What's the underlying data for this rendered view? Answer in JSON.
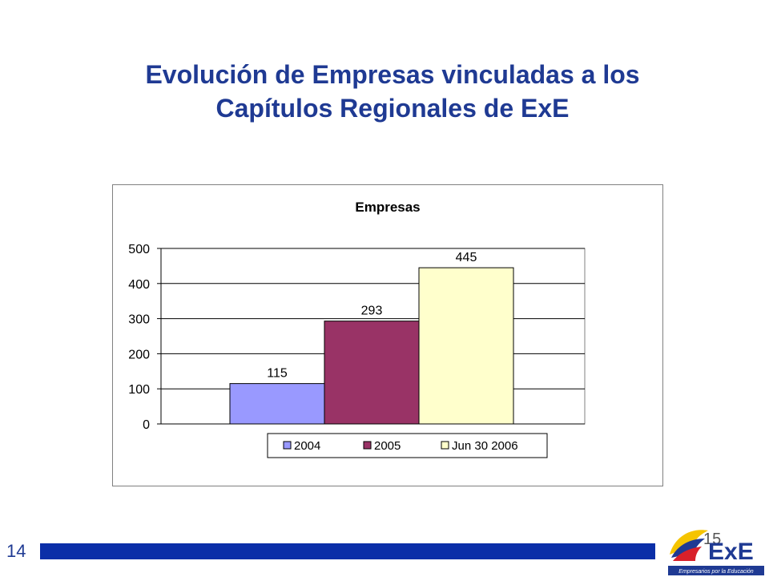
{
  "slide": {
    "title_line1": "Evolución de Empresas vinculadas a los",
    "title_line2": "Capítulos Regionales de ExE",
    "page_number": "14",
    "page_number_small": "15",
    "logo_text": "ExE",
    "logo_tagline": "Empresarios por la Educación"
  },
  "colors": {
    "title": "#1f3a93",
    "footer_bar": "#0b2fa8",
    "bar_2004": "#9999ff",
    "bar_2005": "#993366",
    "bar_jun2006": "#ffffcc"
  },
  "chart_data": {
    "type": "bar",
    "title": "Empresas",
    "categories": [
      ""
    ],
    "series": [
      {
        "name": "2004",
        "values": [
          115
        ],
        "color": "#9999ff"
      },
      {
        "name": "2005",
        "values": [
          293
        ],
        "color": "#993366"
      },
      {
        "name": "Jun 30 2006",
        "values": [
          445
        ],
        "color": "#ffffcc"
      }
    ],
    "data_labels": [
      "115",
      "293",
      "445"
    ],
    "ylim": [
      0,
      500
    ],
    "yticks": [
      0,
      100,
      200,
      300,
      400,
      500
    ],
    "grid": true,
    "legend": "bottom"
  }
}
